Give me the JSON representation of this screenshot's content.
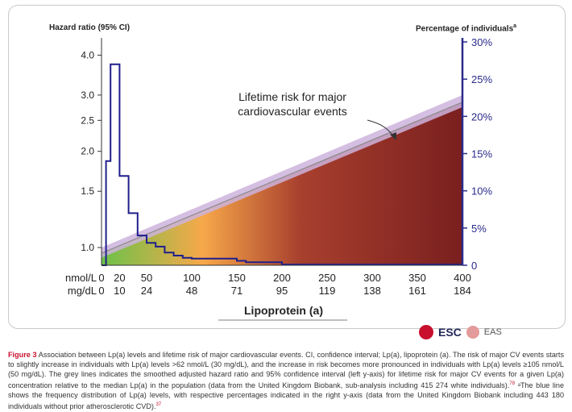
{
  "chart_data": {
    "type": "line",
    "left_axis": {
      "title": "Hazard ratio (95% CI)",
      "scale": "log",
      "ticks": [
        "4.0",
        "3.0",
        "2.5",
        "2.0",
        "1.5",
        "1.0"
      ],
      "tick_values": [
        4.0,
        3.0,
        2.5,
        2.0,
        1.5,
        1.0
      ]
    },
    "right_axis": {
      "title": "Percentage of individuals",
      "title_sup": "a",
      "ticks": [
        "30%",
        "25%",
        "20%",
        "15%",
        "10%",
        "5%",
        "0"
      ],
      "tick_values": [
        30,
        25,
        20,
        15,
        10,
        5,
        0
      ],
      "color": "#2a2a8c"
    },
    "x_axis": {
      "title": "Lipoprotein (a)",
      "nmol_label": "nmol/L",
      "mgdl_label": "mg/dL",
      "nmol_ticks": [
        "0",
        "20",
        "50",
        "100",
        "150",
        "200",
        "250",
        "300",
        "350",
        "400"
      ],
      "nmol_values": [
        0,
        20,
        50,
        100,
        150,
        200,
        250,
        300,
        350,
        400
      ],
      "mgdl_ticks": [
        "0",
        "10",
        "24",
        "48",
        "71",
        "95",
        "119",
        "138",
        "161",
        "184"
      ]
    },
    "annotation": {
      "line1": "Lifetime risk for major",
      "line2": "cardiovascular events"
    },
    "hazard_ratio_series": {
      "lp_a_nmol": [
        0,
        400
      ],
      "hazard_ratio": [
        0.96,
        2.85
      ],
      "ci_low": [
        0.93,
        2.75
      ],
      "ci_high": [
        1.0,
        3.0
      ]
    },
    "frequency_series": {
      "color": "#1f1f8c",
      "lp_a_nmol": [
        0,
        5,
        5,
        10,
        10,
        20,
        20,
        30,
        30,
        40,
        40,
        50,
        50,
        60,
        60,
        70,
        70,
        80,
        80,
        90,
        90,
        100,
        100,
        150,
        150,
        160,
        160,
        200,
        200,
        400
      ],
      "percent": [
        0,
        0,
        14,
        14,
        27,
        27,
        12,
        12,
        7,
        7,
        4,
        4,
        3,
        3,
        2.5,
        2.5,
        1.7,
        1.7,
        1.3,
        1.3,
        1.0,
        1.0,
        0.9,
        0.9,
        0.6,
        0.6,
        0.4,
        0.4,
        0.1,
        0.1
      ]
    },
    "colors": {
      "fill_start": "#6cc24a",
      "fill_mid": "#f7a84a",
      "fill_end": "#7a1f1f",
      "ci_band": "#cdb3dc",
      "hr_line": "#8a8a8a"
    }
  },
  "logos": {
    "esc": "ESC",
    "eas": "EAS"
  },
  "caption": {
    "figure_label": "Figure 3",
    "text": "Association between Lp(a) levels and lifetime risk of major cardiovascular events. CI, confidence interval; Lp(a), lipoprotein (a). The risk of major CV events starts to slightly increase in individuals with Lp(a) levels >62 nmol/L (30 mg/dL), and the increase in risk becomes more pronounced in individuals with Lp(a) levels ≥105 nmol/L (50 mg/dL). The grey lines indicates the smoothed adjusted hazard ratio and 95% confidence interval (left y-axis) for lifetime risk for major CV events for a given Lp(a) concentration relative to the median Lp(a) in the population (data from the United Kingdom Biobank, sub-analysis including 415 274 white individuals).",
    "ref1": "78",
    "text2": " ᵃThe blue line shows the frequency distribution of Lp(a) levels, with respective percentages indicated in the right y-axis (data from the United Kingdom Biobank including 443 180 individuals without prior atherosclerotic CVD).",
    "ref2": "37"
  }
}
